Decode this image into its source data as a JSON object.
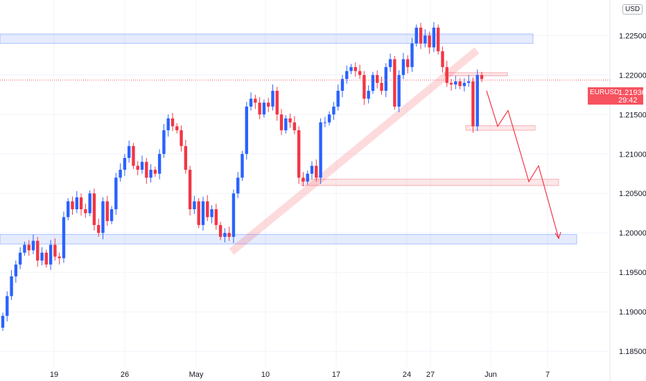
{
  "chart_data": {
    "type": "candlestick",
    "symbol": "EURUSD",
    "currency": "USD",
    "last_price": "1.21936",
    "countdown": "29:42",
    "y_ticks": [
      "1.22500",
      "1.22000",
      "1.21500",
      "1.21000",
      "1.20500",
      "1.20000",
      "1.19500",
      "1.19000",
      "1.18500"
    ],
    "ylim": [
      1.183,
      1.2295
    ],
    "x_ticks": [
      "19",
      "26",
      "May",
      "10",
      "17",
      "24",
      "27",
      "Jun",
      "7"
    ],
    "price_path": [
      1.1895,
      1.192,
      1.1945,
      1.196,
      1.1975,
      1.1985,
      1.1978,
      1.199,
      1.1965,
      1.1975,
      1.196,
      1.1985,
      1.197,
      1.1968,
      1.202,
      1.204,
      1.203,
      1.2045,
      1.203,
      1.2025,
      1.205,
      1.201,
      1.2,
      1.204,
      1.2015,
      1.203,
      1.207,
      1.208,
      1.2095,
      1.211,
      1.2085,
      1.208,
      1.209,
      1.207,
      1.208,
      1.2075,
      1.21,
      1.213,
      1.2145,
      1.2135,
      1.213,
      1.211,
      1.208,
      1.203,
      1.204,
      1.201,
      1.204,
      1.202,
      1.203,
      1.201,
      1.1995,
      1.2,
      1.1995,
      1.205,
      1.207,
      1.21,
      1.216,
      1.217,
      1.2165,
      1.215,
      1.2165,
      1.216,
      1.218,
      1.215,
      1.213,
      1.2145,
      1.214,
      1.213,
      1.207,
      1.2065,
      1.2075,
      1.2085,
      1.207,
      1.214,
      1.214,
      1.215,
      1.216,
      1.218,
      1.2195,
      1.2205,
      1.221,
      1.2205,
      1.22,
      1.217,
      1.218,
      1.22,
      1.219,
      1.218,
      1.221,
      1.222,
      1.216,
      1.22,
      1.222,
      1.221,
      1.224,
      1.226,
      1.224,
      1.225,
      1.2235,
      1.226,
      1.223,
      1.221,
      1.219,
      1.2188,
      1.2192,
      1.2186,
      1.219,
      1.2192,
      1.2135,
      1.22,
      1.2195
    ],
    "zones": [
      {
        "kind": "resistance",
        "low": 1.224,
        "high": 1.2252,
        "color": "#2962ff"
      },
      {
        "kind": "support",
        "low": 1.1986,
        "high": 1.1998,
        "color": "#2962ff"
      },
      {
        "kind": "target",
        "low": 1.206,
        "high": 1.2068,
        "color": "#f23645"
      },
      {
        "kind": "target",
        "low": 1.213,
        "high": 1.2136,
        "color": "#f23645"
      },
      {
        "kind": "target",
        "low": 1.2199,
        "high": 1.2203,
        "color": "#f23645"
      }
    ],
    "trendline": {
      "from_price": 1.1985,
      "to_price": 1.224,
      "color": "#f23645"
    },
    "projection": [
      1.218,
      1.2135,
      1.2155,
      1.2065,
      1.2085,
      1.1993
    ],
    "colors": {
      "up": "#2962ff",
      "down": "#f23645",
      "grid": "#f0f3fa"
    }
  }
}
